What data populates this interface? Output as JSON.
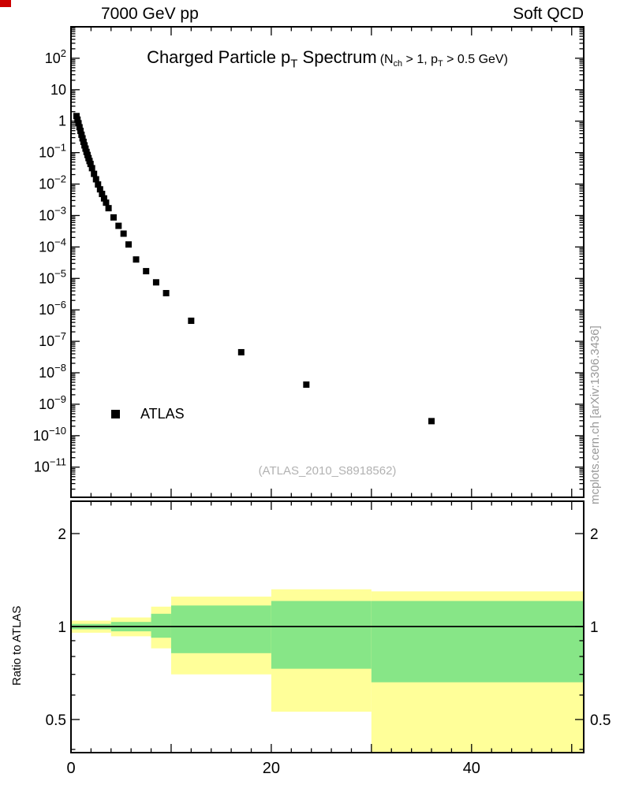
{
  "page": {
    "corner_mark_color": "#cc0000",
    "header_left": "7000 GeV pp",
    "header_right": "Soft QCD",
    "side_note": "mcplots.cern.ch [arXiv:1306.3436]",
    "watermark": "(ATLAS_2010_S8918562)"
  },
  "title": {
    "main_pre": "Charged Particle p",
    "main_sub": "T",
    "main_post": " Spectrum",
    "cond_pre": "(N",
    "cond_sub1": "ch",
    "cond_mid": " > 1, p",
    "cond_sub2": "T",
    "cond_post": " > 0.5 GeV)"
  },
  "legend": {
    "label": "ATLAS",
    "marker": "filled-square",
    "marker_color": "#000000"
  },
  "chart_data": {
    "type": "scatter",
    "title": "Charged Particle pT Spectrum",
    "subtitle": "(Nch > 1, pT > 0.5 GeV)",
    "xlabel": "",
    "legend_position": "left-middle",
    "grid": false,
    "x_axis": {
      "min": 0,
      "max": 51.2,
      "minor_step": 2,
      "major_step": 10,
      "labeled_ticks": [
        0,
        20,
        40
      ]
    },
    "top_panel": {
      "yscale": "log",
      "ymin": 1.1e-12,
      "ymax": 1000,
      "labeled_exponents": [
        2,
        1,
        0,
        -1,
        -2,
        -3,
        -4,
        -5,
        -6,
        -7,
        -8,
        -9,
        -10,
        -11
      ],
      "series": [
        {
          "name": "ATLAS",
          "marker": "square",
          "color": "#000000",
          "points": [
            [
              0.55,
              1.45
            ],
            [
              0.65,
              1.12
            ],
            [
              0.75,
              0.86
            ],
            [
              0.85,
              0.64
            ],
            [
              0.95,
              0.49
            ],
            [
              1.05,
              0.37
            ],
            [
              1.15,
              0.285
            ],
            [
              1.25,
              0.22
            ],
            [
              1.35,
              0.17
            ],
            [
              1.45,
              0.134
            ],
            [
              1.55,
              0.105
            ],
            [
              1.65,
              0.084
            ],
            [
              1.75,
              0.067
            ],
            [
              1.85,
              0.054
            ],
            [
              1.95,
              0.0435
            ],
            [
              2.1,
              0.032
            ],
            [
              2.3,
              0.0211
            ],
            [
              2.5,
              0.0142
            ],
            [
              2.7,
              0.0097
            ],
            [
              2.9,
              0.0068
            ],
            [
              3.1,
              0.00485
            ],
            [
              3.3,
              0.0035
            ],
            [
              3.5,
              0.00256
            ],
            [
              3.75,
              0.00171
            ],
            [
              4.25,
              0.00087
            ],
            [
              4.75,
              0.00047
            ],
            [
              5.25,
              0.000265
            ],
            [
              5.75,
              0.00012
            ],
            [
              6.5,
              4e-05
            ],
            [
              7.5,
              1.7e-05
            ],
            [
              8.5,
              7.5e-06
            ],
            [
              9.5,
              3.4e-06
            ],
            [
              12,
              4.5e-07
            ],
            [
              17,
              4.5e-08
            ],
            [
              23.5,
              4.2e-09
            ],
            [
              36,
              2.9e-10
            ]
          ]
        }
      ]
    },
    "bottom_panel": {
      "ylabel": "Ratio to ATLAS",
      "yscale": "log",
      "ymin": 0.3906,
      "ymax": 2.546,
      "labeled_ticks": [
        0.5,
        1,
        2
      ],
      "minor_ticks": [
        0.4,
        0.6,
        0.7,
        0.8,
        0.9
      ],
      "reference_line": 1,
      "colors": {
        "outer": "#ffff99",
        "inner": "#87e687"
      },
      "bands": [
        {
          "x": [
            0,
            4
          ],
          "outer": [
            0.955,
            1.045
          ],
          "inner": [
            0.98,
            1.02
          ]
        },
        {
          "x": [
            4,
            8
          ],
          "outer": [
            0.93,
            1.07
          ],
          "inner": [
            0.965,
            1.035
          ]
        },
        {
          "x": [
            8,
            10
          ],
          "outer": [
            0.85,
            1.16
          ],
          "inner": [
            0.92,
            1.1
          ]
        },
        {
          "x": [
            10,
            20
          ],
          "outer": [
            0.7,
            1.25
          ],
          "inner": [
            0.82,
            1.17
          ]
        },
        {
          "x": [
            20,
            30
          ],
          "outer": [
            0.53,
            1.32
          ],
          "inner": [
            0.73,
            1.21
          ]
        },
        {
          "x": [
            30,
            51.2
          ],
          "outer": [
            0.38,
            1.3
          ],
          "inner": [
            0.66,
            1.21
          ]
        }
      ]
    }
  }
}
